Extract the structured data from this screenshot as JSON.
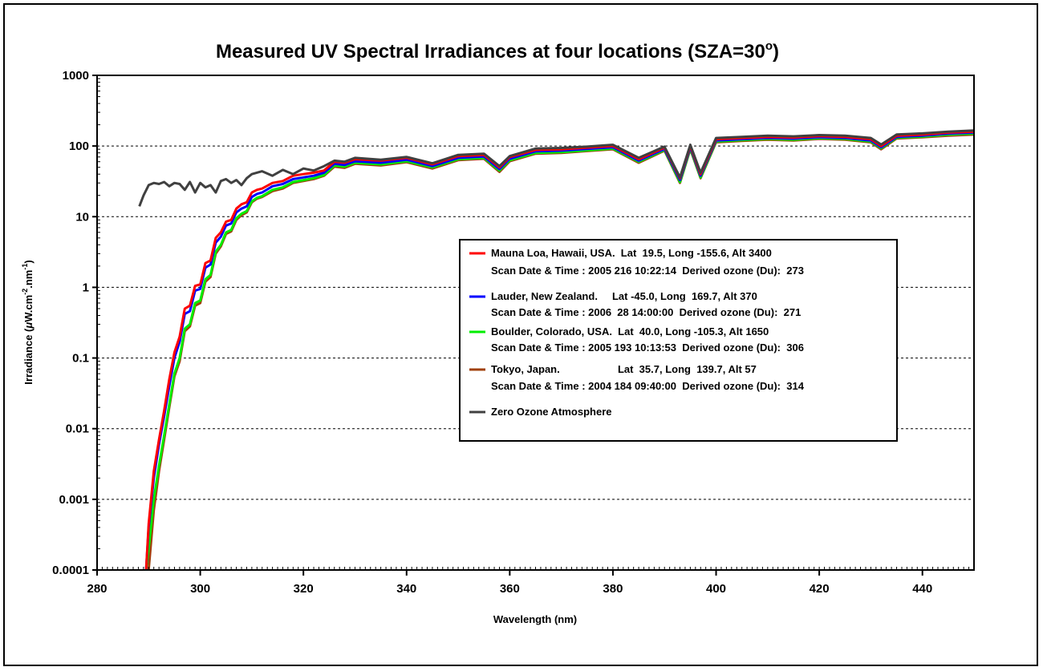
{
  "chart_data": {
    "type": "line",
    "title": "Measured UV Spectral Irradiances at four locations (SZA=30",
    "title_sup": "o",
    "title_end": ")",
    "xlabel": "Wavelength (nm)",
    "ylabel_parts": [
      "Irradiance (",
      "μ",
      "W.cm",
      "-2",
      ".nm",
      "-1",
      ")"
    ],
    "xlim": [
      280,
      450
    ],
    "ylim": [
      0.0001,
      1000
    ],
    "y_scale": "log",
    "grid": "horizontal dashed",
    "legend_position": "right-center",
    "x_ticks": [
      "280",
      "300",
      "320",
      "340",
      "360",
      "380",
      "400",
      "420",
      "440"
    ],
    "y_ticks": [
      "0.0001",
      "0.001",
      "0.01",
      "0.1",
      "1",
      "10",
      "100",
      "1000"
    ],
    "legend": [
      {
        "line1": "Mauna Loa, Hawaii, USA.  Lat  19.5, Long -155.6, Alt 3400",
        "line2": "Scan Date & Time : 2005 216 10:22:14  Derived ozone (Du):  273",
        "color": "#ff0000"
      },
      {
        "line1": "Lauder, New Zealand.     Lat -45.0, Long  169.7, Alt 370",
        "line2": "Scan Date & Time : 2006  28 14:00:00  Derived ozone (Du):  271",
        "color": "#0000ff"
      },
      {
        "line1": "Boulder, Colorado, USA.  Lat  40.0, Long -105.3, Alt 1650",
        "line2": "Scan Date & Time : 2005 193 10:13:53  Derived ozone (Du):  306",
        "color": "#00ee00"
      },
      {
        "line1": "Tokyo, Japan.                    Lat  35.7, Long  139.7, Alt 57",
        "line2": "Scan Date & Time : 2004 184 09:40:00  Derived ozone (Du):  314",
        "color": "#a0400a"
      },
      {
        "line1": "Zero Ozone Atmosphere",
        "line2": "",
        "color": "#404040"
      }
    ],
    "series": [
      {
        "name": "Mauna Loa, Hawaii, USA.",
        "color": "#ff0000",
        "x": [
          289.5,
          290,
          291,
          292,
          293,
          294,
          295,
          296,
          297,
          298,
          299,
          300,
          301,
          302,
          303,
          304,
          305,
          306,
          307,
          308,
          309,
          310,
          311,
          312,
          314,
          316,
          318,
          320,
          322,
          324,
          326,
          328,
          330,
          335,
          340,
          345,
          350,
          355,
          358,
          360,
          365,
          370,
          375,
          380,
          385,
          390,
          393,
          395,
          397,
          400,
          405,
          410,
          415,
          420,
          425,
          430,
          432,
          435,
          440,
          445,
          450
        ],
        "y": [
          0.0001,
          0.00045,
          0.0025,
          0.007,
          0.018,
          0.05,
          0.12,
          0.2,
          0.5,
          0.55,
          1.05,
          1.1,
          2.2,
          2.4,
          5.0,
          6.0,
          8.5,
          9.0,
          13.0,
          15.0,
          16.0,
          22.0,
          24.0,
          25.0,
          30.0,
          32.0,
          38.0,
          40.0,
          42.0,
          45.0,
          60.0,
          58.0,
          65.0,
          62.0,
          68.0,
          55.0,
          72.0,
          75.0,
          50.0,
          70.0,
          88.0,
          90.0,
          95.0,
          100.0,
          65.0,
          95.0,
          35.0,
          100.0,
          40.0,
          125.0,
          130.0,
          135.0,
          132.0,
          138.0,
          135.0,
          125.0,
          100.0,
          140.0,
          145.0,
          155.0,
          160.0
        ]
      },
      {
        "name": "Lauder, New Zealand.",
        "color": "#0000ff",
        "x": [
          289.5,
          290,
          291,
          292,
          293,
          294,
          295,
          296,
          297,
          298,
          299,
          300,
          301,
          302,
          303,
          304,
          305,
          306,
          307,
          308,
          309,
          310,
          311,
          312,
          314,
          316,
          318,
          320,
          322,
          324,
          326,
          328,
          330,
          335,
          340,
          345,
          350,
          355,
          358,
          360,
          365,
          370,
          375,
          380,
          385,
          390,
          393,
          395,
          397,
          400,
          405,
          410,
          415,
          420,
          425,
          430,
          432,
          435,
          440,
          445,
          450
        ],
        "y": [
          0.0001,
          0.0004,
          0.002,
          0.006,
          0.015,
          0.04,
          0.1,
          0.17,
          0.42,
          0.46,
          0.9,
          0.95,
          1.9,
          2.1,
          4.3,
          5.2,
          7.5,
          8.0,
          11.5,
          13.0,
          14.0,
          19.0,
          21.0,
          22.0,
          27.0,
          29.0,
          34.0,
          36.0,
          38.0,
          42.0,
          56.0,
          54.0,
          61.0,
          58.0,
          64.0,
          52.0,
          68.0,
          71.0,
          47.0,
          66.0,
          84.0,
          86.0,
          91.0,
          96.0,
          62.0,
          91.0,
          33.0,
          96.0,
          38.0,
          120.0,
          125.0,
          130.0,
          127.0,
          133.0,
          130.0,
          120.0,
          96.0,
          135.0,
          140.0,
          150.0,
          155.0
        ]
      },
      {
        "name": "Boulder, Colorado, USA.",
        "color": "#00ee00",
        "x": [
          289.5,
          290,
          291,
          292,
          293,
          294,
          295,
          296,
          297,
          298,
          299,
          300,
          301,
          302,
          303,
          304,
          305,
          306,
          307,
          308,
          309,
          310,
          311,
          312,
          314,
          316,
          318,
          320,
          322,
          324,
          326,
          328,
          330,
          335,
          340,
          345,
          350,
          355,
          358,
          360,
          365,
          370,
          375,
          380,
          385,
          390,
          393,
          395,
          397,
          400,
          405,
          410,
          415,
          420,
          425,
          430,
          432,
          435,
          440,
          445,
          450
        ],
        "y": [
          0.0001,
          0.0002,
          0.001,
          0.003,
          0.008,
          0.022,
          0.06,
          0.1,
          0.26,
          0.3,
          0.6,
          0.65,
          1.3,
          1.5,
          3.2,
          4.0,
          6.0,
          6.5,
          9.5,
          11.0,
          12.0,
          16.5,
          18.5,
          19.5,
          24.0,
          26.0,
          31.0,
          33.0,
          35.0,
          39.0,
          53.0,
          51.0,
          58.0,
          55.0,
          61.0,
          50.0,
          65.0,
          68.0,
          45.0,
          63.0,
          80.0,
          82.0,
          87.0,
          92.0,
          60.0,
          88.0,
          31.0,
          92.0,
          36.0,
          116.0,
          121.0,
          126.0,
          123.0,
          129.0,
          126.0,
          116.0,
          93.0,
          131.0,
          136.0,
          145.0,
          150.0
        ]
      },
      {
        "name": "Tokyo, Japan.",
        "color": "#a0400a",
        "x": [
          290,
          291,
          292,
          293,
          294,
          295,
          296,
          297,
          298,
          299,
          300,
          301,
          302,
          303,
          304,
          305,
          306,
          307,
          308,
          309,
          310,
          311,
          312,
          314,
          316,
          318,
          320,
          322,
          324,
          326,
          328,
          330,
          335,
          340,
          345,
          350,
          355,
          358,
          360,
          365,
          370,
          375,
          380,
          385,
          390,
          393,
          395,
          397,
          400,
          405,
          410,
          415,
          420,
          425,
          430,
          432,
          435,
          440,
          445,
          450
        ],
        "y": [
          0.0001,
          0.0007,
          0.0025,
          0.007,
          0.02,
          0.055,
          0.09,
          0.24,
          0.28,
          0.55,
          0.6,
          1.2,
          1.4,
          3.0,
          3.8,
          5.7,
          6.2,
          9.0,
          10.5,
          11.5,
          16.0,
          18.0,
          19.0,
          23.0,
          25.0,
          30.0,
          32.0,
          34.0,
          38.0,
          51.0,
          49.0,
          56.0,
          53.0,
          59.0,
          48.0,
          63.0,
          66.0,
          43.0,
          61.0,
          78.0,
          80.0,
          85.0,
          90.0,
          58.0,
          86.0,
          30.0,
          90.0,
          35.0,
          113.0,
          118.0,
          123.0,
          120.0,
          126.0,
          123.0,
          113.0,
          90.0,
          128.0,
          133.0,
          140.0,
          145.0
        ]
      },
      {
        "name": "Zero Ozone Atmosphere",
        "color": "#404040",
        "x": [
          288.2,
          289,
          290,
          291,
          292,
          293,
          294,
          295,
          296,
          297,
          298,
          299,
          300,
          301,
          302,
          303,
          304,
          305,
          306,
          307,
          308,
          309,
          310,
          312,
          314,
          316,
          318,
          320,
          322,
          324,
          326,
          328,
          330,
          335,
          340,
          345,
          350,
          355,
          358,
          360,
          365,
          370,
          375,
          380,
          385,
          390,
          393,
          395,
          397,
          400,
          405,
          410,
          415,
          420,
          425,
          430,
          432,
          435,
          440,
          445,
          450
        ],
        "y": [
          14.0,
          20.0,
          28.0,
          30.0,
          29.0,
          31.0,
          27.0,
          30.0,
          29.0,
          24.0,
          31.0,
          22.0,
          30.0,
          26.0,
          28.0,
          22.0,
          32.0,
          34.0,
          30.0,
          33.0,
          28.0,
          35.0,
          40.0,
          44.0,
          38.0,
          46.0,
          40.0,
          48.0,
          45.0,
          52.0,
          62.0,
          60.0,
          68.0,
          64.0,
          70.0,
          57.0,
          75.0,
          78.0,
          52.0,
          72.0,
          92.0,
          94.0,
          98.0,
          104.0,
          68.0,
          98.0,
          36.0,
          104.0,
          42.0,
          130.0,
          135.0,
          140.0,
          137.0,
          143.0,
          140.0,
          130.0,
          105.0,
          146.0,
          151.0,
          160.0,
          166.0
        ]
      }
    ]
  }
}
